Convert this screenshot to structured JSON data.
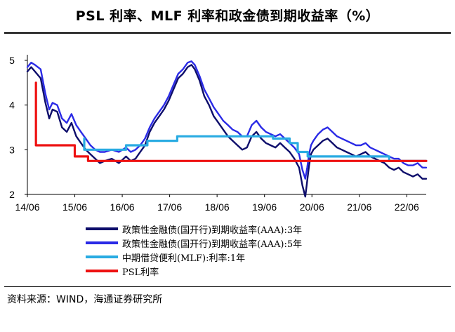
{
  "title": "PSL 利率、MLF 利率和政金债到期收益率（%）",
  "source": "资料来源：WIND，海通证券研究所",
  "chart_data": {
    "type": "line",
    "title": "PSL 利率、MLF 利率和政金债到期收益率（%）",
    "xlabel": "",
    "ylabel": "",
    "ylim": [
      2,
      5
    ],
    "xlim": [
      2014.42,
      2022.83
    ],
    "yticks": [
      "2",
      "3",
      "4",
      "5"
    ],
    "xtick_labels": [
      "14/06",
      "15/06",
      "16/06",
      "17/06",
      "18/06",
      "19/06",
      "20/06",
      "21/06",
      "22/06"
    ],
    "xtick_values": [
      2014.42,
      2015.42,
      2016.42,
      2017.42,
      2018.42,
      2019.42,
      2020.42,
      2021.42,
      2022.42
    ],
    "grid": false,
    "legend_position": "bottom",
    "series": [
      {
        "name": "政策性金融债(国开行)到期收益率(AAA):3年",
        "color": "#0d0d6b",
        "step": false,
        "x": [
          2014.42,
          2014.5,
          2014.58,
          2014.7,
          2014.8,
          2014.88,
          2014.95,
          2015.05,
          2015.15,
          2015.25,
          2015.35,
          2015.45,
          2015.55,
          2015.65,
          2015.75,
          2015.85,
          2015.95,
          2016.05,
          2016.2,
          2016.35,
          2016.5,
          2016.6,
          2016.7,
          2016.8,
          2016.9,
          2017.0,
          2017.1,
          2017.2,
          2017.3,
          2017.4,
          2017.5,
          2017.6,
          2017.7,
          2017.8,
          2017.88,
          2017.95,
          2018.05,
          2018.15,
          2018.25,
          2018.35,
          2018.45,
          2018.55,
          2018.65,
          2018.75,
          2018.85,
          2018.95,
          2019.05,
          2019.15,
          2019.25,
          2019.35,
          2019.45,
          2019.55,
          2019.65,
          2019.75,
          2019.85,
          2019.95,
          2020.05,
          2020.15,
          2020.22,
          2020.28,
          2020.32,
          2020.36,
          2020.4,
          2020.45,
          2020.55,
          2020.65,
          2020.75,
          2020.85,
          2020.95,
          2021.05,
          2021.15,
          2021.25,
          2021.35,
          2021.45,
          2021.55,
          2021.65,
          2021.75,
          2021.85,
          2021.95,
          2022.05,
          2022.15,
          2022.25,
          2022.35,
          2022.45,
          2022.55,
          2022.65,
          2022.75,
          2022.83
        ],
        "y": [
          4.75,
          4.85,
          4.75,
          4.6,
          4.05,
          3.7,
          3.9,
          3.85,
          3.5,
          3.4,
          3.6,
          3.3,
          3.15,
          3.0,
          2.9,
          2.8,
          2.7,
          2.75,
          2.8,
          2.7,
          2.85,
          2.75,
          2.8,
          2.95,
          3.1,
          3.4,
          3.6,
          3.75,
          3.9,
          4.1,
          4.35,
          4.6,
          4.7,
          4.85,
          4.9,
          4.8,
          4.55,
          4.2,
          4.0,
          3.75,
          3.6,
          3.45,
          3.3,
          3.2,
          3.1,
          3.0,
          3.05,
          3.3,
          3.4,
          3.25,
          3.15,
          3.1,
          3.05,
          3.15,
          3.05,
          2.95,
          2.8,
          2.6,
          2.2,
          1.95,
          2.3,
          2.65,
          2.9,
          3.0,
          3.1,
          3.2,
          3.25,
          3.15,
          3.05,
          3.0,
          2.95,
          2.9,
          2.85,
          2.9,
          2.95,
          2.85,
          2.8,
          2.75,
          2.7,
          2.6,
          2.55,
          2.6,
          2.5,
          2.45,
          2.4,
          2.45,
          2.35,
          2.35
        ]
      },
      {
        "name": "政策性金融债(国开行)到期收益率(AAA):5年",
        "color": "#2a2ae6",
        "step": false,
        "x": [
          2014.42,
          2014.5,
          2014.58,
          2014.7,
          2014.8,
          2014.88,
          2014.95,
          2015.05,
          2015.15,
          2015.25,
          2015.35,
          2015.45,
          2015.55,
          2015.65,
          2015.75,
          2015.85,
          2015.95,
          2016.05,
          2016.2,
          2016.35,
          2016.5,
          2016.6,
          2016.7,
          2016.8,
          2016.9,
          2017.0,
          2017.1,
          2017.2,
          2017.3,
          2017.4,
          2017.5,
          2017.6,
          2017.7,
          2017.8,
          2017.88,
          2017.95,
          2018.05,
          2018.15,
          2018.25,
          2018.35,
          2018.45,
          2018.55,
          2018.65,
          2018.75,
          2018.85,
          2018.95,
          2019.05,
          2019.15,
          2019.25,
          2019.35,
          2019.45,
          2019.55,
          2019.65,
          2019.75,
          2019.85,
          2019.95,
          2020.05,
          2020.15,
          2020.22,
          2020.28,
          2020.32,
          2020.36,
          2020.4,
          2020.45,
          2020.55,
          2020.65,
          2020.75,
          2020.85,
          2020.95,
          2021.05,
          2021.15,
          2021.25,
          2021.35,
          2021.45,
          2021.55,
          2021.65,
          2021.75,
          2021.85,
          2021.95,
          2022.05,
          2022.15,
          2022.25,
          2022.35,
          2022.45,
          2022.55,
          2022.65,
          2022.75,
          2022.83
        ],
        "y": [
          4.85,
          4.95,
          4.9,
          4.8,
          4.25,
          3.9,
          4.05,
          4.0,
          3.7,
          3.6,
          3.8,
          3.55,
          3.4,
          3.25,
          3.1,
          3.0,
          2.95,
          2.95,
          3.0,
          2.95,
          3.05,
          2.95,
          3.0,
          3.1,
          3.25,
          3.5,
          3.7,
          3.85,
          4.0,
          4.2,
          4.45,
          4.7,
          4.8,
          4.95,
          4.98,
          4.9,
          4.65,
          4.35,
          4.15,
          3.95,
          3.8,
          3.65,
          3.55,
          3.45,
          3.4,
          3.3,
          3.3,
          3.55,
          3.65,
          3.5,
          3.4,
          3.35,
          3.3,
          3.35,
          3.25,
          3.15,
          3.05,
          2.9,
          2.55,
          2.35,
          2.6,
          2.9,
          3.1,
          3.2,
          3.35,
          3.45,
          3.5,
          3.4,
          3.3,
          3.25,
          3.2,
          3.15,
          3.1,
          3.1,
          3.15,
          3.05,
          3.0,
          2.95,
          2.9,
          2.85,
          2.8,
          2.8,
          2.7,
          2.65,
          2.65,
          2.7,
          2.6,
          2.6
        ]
      },
      {
        "name": "中期借贷便利(MLF):利率:1年",
        "color": "#29abe2",
        "step": true,
        "x": [
          2015.62,
          2015.7,
          2016.5,
          2016.95,
          2017.17,
          2017.58,
          2018.1,
          2019.6,
          2019.95,
          2020.12,
          2020.33,
          2022.05,
          2022.58,
          2022.83
        ],
        "y": [
          3.25,
          3.0,
          3.0,
          3.1,
          3.2,
          3.2,
          3.3,
          3.3,
          3.25,
          3.15,
          2.95,
          2.85,
          2.75,
          2.75
        ]
      },
      {
        "name": "PSL利率",
        "color": "#ee1111",
        "step": true,
        "x": [
          2014.6,
          2015.42,
          2015.48,
          2015.7,
          2016.0,
          2022.83
        ],
        "y": [
          4.5,
          3.1,
          2.85,
          2.85,
          2.75,
          2.75
        ]
      }
    ]
  }
}
